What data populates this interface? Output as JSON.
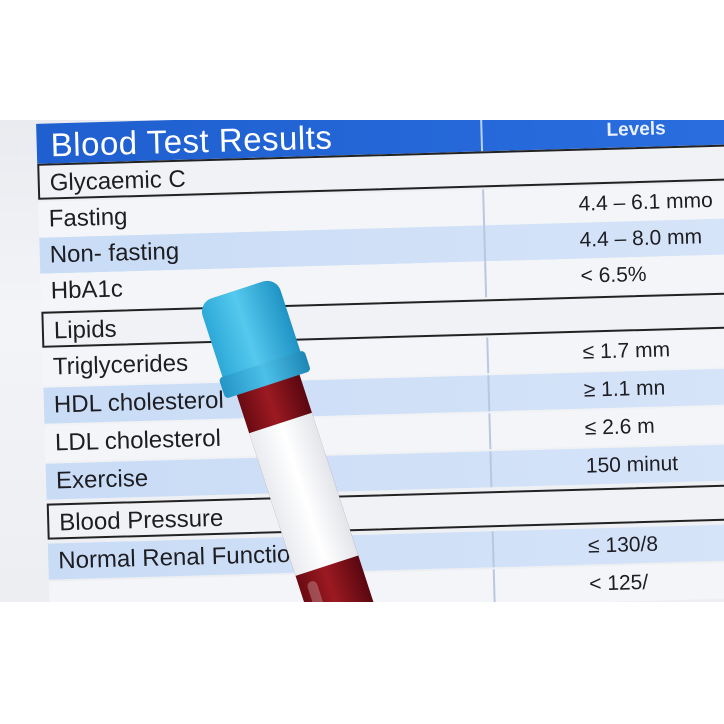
{
  "sheet": {
    "title": "Blood Test Results",
    "levels_header": "Levels",
    "rows": [
      {
        "label": "Glycaemic C",
        "value": "",
        "style": "section"
      },
      {
        "label": "Fasting",
        "value": "4.4 – 6.1 mmo",
        "style": "white"
      },
      {
        "label": "Non- fasting",
        "value": "4.4 – 8.0 mm",
        "style": "blue"
      },
      {
        "label": "HbA1c",
        "value": "< 6.5%",
        "style": "white"
      },
      {
        "label": "Lipids",
        "value": "",
        "style": "section"
      },
      {
        "label": "Triglycerides",
        "value": "≤ 1.7 mm",
        "style": "white"
      },
      {
        "label": "HDL cholesterol",
        "value": "≥ 1.1 mn",
        "style": "blue"
      },
      {
        "label": "LDL cholesterol",
        "value": "≤ 2.6 m",
        "style": "white"
      },
      {
        "label": "Exercise",
        "value": "150 minut",
        "style": "blue"
      },
      {
        "label": "Blood Pressure",
        "value": "",
        "style": "section"
      },
      {
        "label": "Normal Renal Function",
        "value": "≤ 130/8",
        "style": "blue"
      },
      {
        "label": "",
        "value": "< 125/",
        "style": "white"
      }
    ]
  },
  "tube": {
    "cap_color": "#3bb6e3",
    "blood_color": "#8a1420"
  }
}
